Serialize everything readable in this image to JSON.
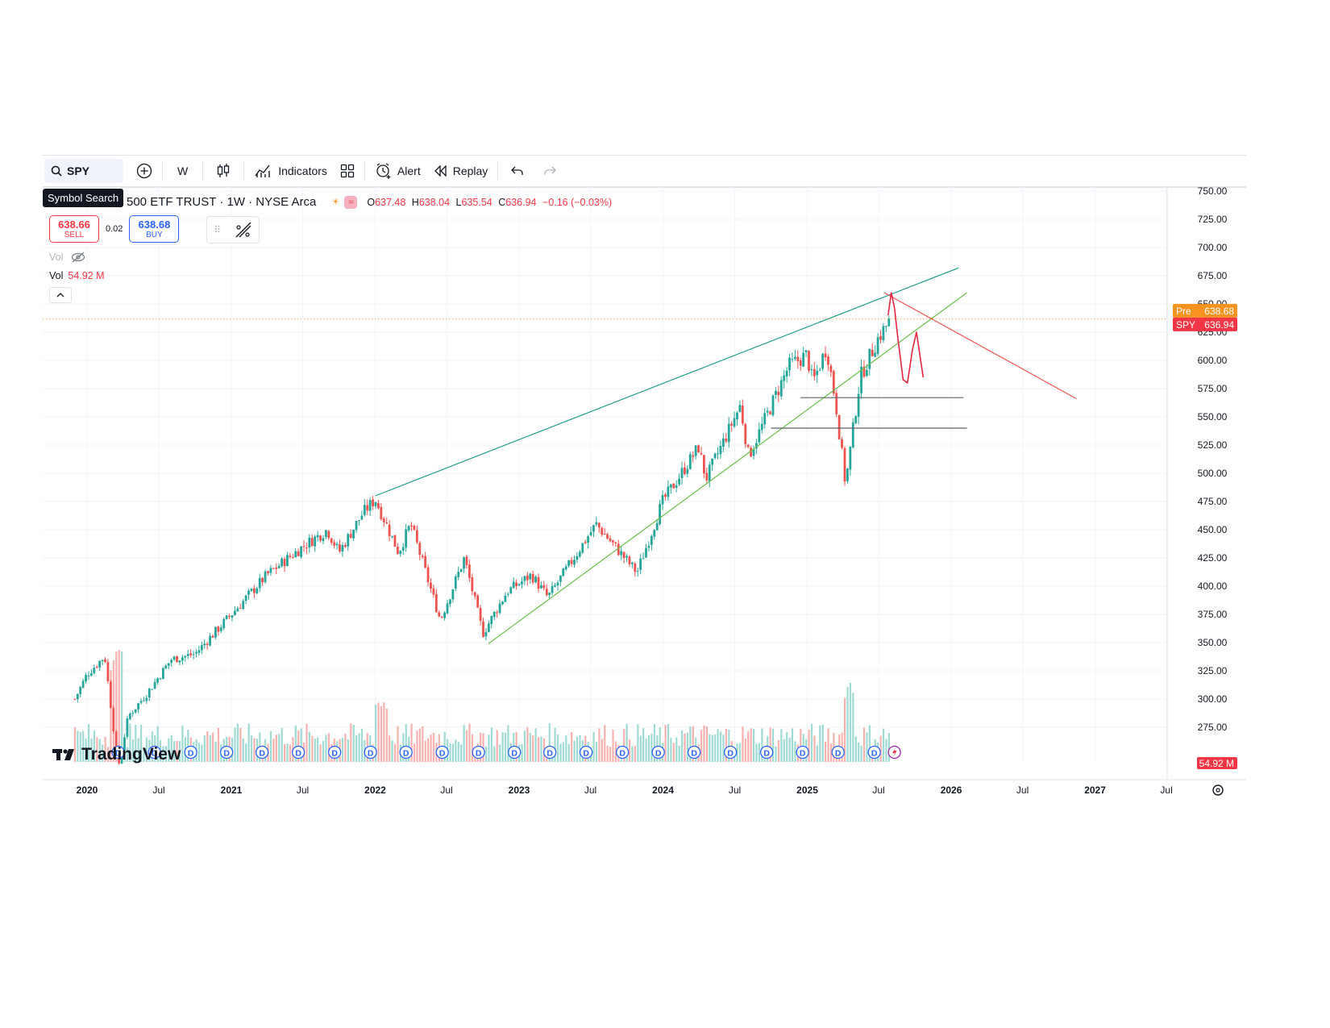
{
  "toolbar": {
    "symbol": "SPY",
    "interval": "W",
    "indicators_label": "Indicators",
    "alert_label": "Alert",
    "replay_label": "Replay",
    "tooltip": "Symbol Search"
  },
  "legend": {
    "title": "500 ETF TRUST · 1W · NYSE Arca",
    "o_label": "O",
    "o": "637.48",
    "h_label": "H",
    "h": "638.04",
    "l_label": "L",
    "l": "635.54",
    "c_label": "C",
    "c": "636.94",
    "change": "−0.16 (−0.03%)"
  },
  "trade": {
    "sell_price": "638.66",
    "sell_label": "SELL",
    "spread": "0.02",
    "buy_price": "638.68",
    "buy_label": "BUY"
  },
  "volume": {
    "hidden_label": "Vol",
    "label": "Vol",
    "value": "54.92 M"
  },
  "price_tags": {
    "pre_label": "Pre",
    "pre_value": "638.68",
    "symbol_label": "SPY",
    "symbol_value": "636.94",
    "volume_value": "54.92 M"
  },
  "colors": {
    "up": "#26a69a",
    "down": "#ef5350",
    "pre": "#f7931e",
    "spy": "#f23645",
    "trend_teal": "#1f9e8b",
    "trend_green": "#6abf4b",
    "trend_red": "#ef5350"
  },
  "logo_text": "TradingView",
  "event_marker": "D",
  "chart_data": {
    "type": "candlestick",
    "symbol": "SPY",
    "interval": "1W",
    "y_ticks": [
      "750.00",
      "725.00",
      "700.00",
      "675.00",
      "650.00",
      "625.00",
      "600.00",
      "575.00",
      "550.00",
      "525.00",
      "500.00",
      "475.00",
      "450.00",
      "425.00",
      "400.00",
      "375.00",
      "350.00",
      "325.00",
      "300.00",
      "275.00"
    ],
    "x_ticks": [
      "2020",
      "Jul",
      "2021",
      "Jul",
      "2022",
      "Jul",
      "2023",
      "Jul",
      "2024",
      "Jul",
      "2025",
      "Jul",
      "2026",
      "Jul",
      "2027",
      "Jul"
    ],
    "ylim": [
      262,
      755
    ],
    "path": [
      [
        "2019-12-01",
        300
      ],
      [
        "2020-01-01",
        322
      ],
      [
        "2020-02-15",
        338
      ],
      [
        "2020-03-20",
        240
      ],
      [
        "2020-04-15",
        285
      ],
      [
        "2020-06-01",
        305
      ],
      [
        "2020-08-01",
        335
      ],
      [
        "2020-10-01",
        340
      ],
      [
        "2021-01-01",
        375
      ],
      [
        "2021-04-01",
        410
      ],
      [
        "2021-07-01",
        435
      ],
      [
        "2021-09-01",
        450
      ],
      [
        "2021-10-01",
        430
      ],
      [
        "2021-12-01",
        465
      ],
      [
        "2022-01-01",
        477
      ],
      [
        "2022-03-01",
        430
      ],
      [
        "2022-04-01",
        455
      ],
      [
        "2022-06-15",
        370
      ],
      [
        "2022-08-15",
        425
      ],
      [
        "2022-10-01",
        358
      ],
      [
        "2022-12-01",
        395
      ],
      [
        "2023-02-01",
        410
      ],
      [
        "2023-03-15",
        390
      ],
      [
        "2023-05-01",
        415
      ],
      [
        "2023-07-15",
        455
      ],
      [
        "2023-10-27",
        412
      ],
      [
        "2023-12-31",
        475
      ],
      [
        "2024-03-31",
        523
      ],
      [
        "2024-04-19",
        495
      ],
      [
        "2024-07-15",
        560
      ],
      [
        "2024-08-05",
        515
      ],
      [
        "2024-11-15",
        595
      ],
      [
        "2024-12-31",
        605
      ],
      [
        "2025-01-15",
        580
      ],
      [
        "2025-02-19",
        612
      ],
      [
        "2025-03-15",
        560
      ],
      [
        "2025-04-08",
        490
      ],
      [
        "2025-05-15",
        585
      ],
      [
        "2025-06-30",
        620
      ],
      [
        "2025-08-01",
        636.94
      ]
    ],
    "trendlines": [
      {
        "color": "teal",
        "points": [
          [
            "2022-01-01",
            480
          ],
          [
            "2026-01-20",
            682
          ]
        ]
      },
      {
        "color": "green",
        "points": [
          [
            "2022-10-15",
            349
          ],
          [
            "2026-02-10",
            660
          ]
        ]
      },
      {
        "color": "red",
        "points": [
          [
            "2025-07-15",
            660
          ],
          [
            "2026-11-15",
            566
          ]
        ]
      },
      {
        "color": "gray",
        "points": [
          [
            "2024-12-15",
            567
          ],
          [
            "2026-02-01",
            567
          ]
        ]
      },
      {
        "color": "gray",
        "points": [
          [
            "2024-10-01",
            540
          ],
          [
            "2026-02-10",
            540
          ]
        ]
      }
    ],
    "current_price": 636.94,
    "pre_price": 638.68
  }
}
